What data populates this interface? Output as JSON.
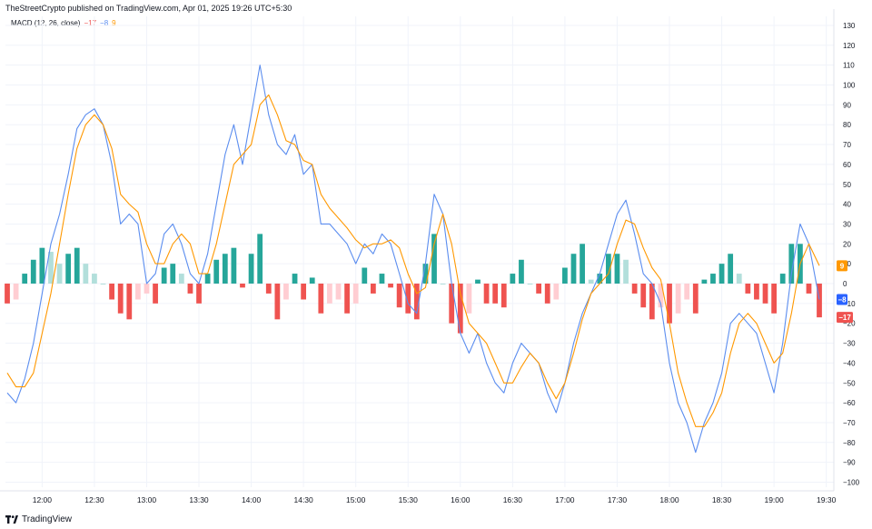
{
  "header": {
    "published_line": "TheStreetCrypto published on TradingView.com, Apr 01, 2025 19:26 UTC+5:30"
  },
  "legend": {
    "name": "MACD (12, 26, close)",
    "histogram_value": "−17",
    "macd_value": "−8",
    "signal_value": "9"
  },
  "footer": {
    "logo_label": "TradingView"
  },
  "colors": {
    "macd_line": "#5b8def",
    "signal_line": "#ff9800",
    "hist_pos_strong": "#26a69a",
    "hist_pos_weak": "#b2dfdb",
    "hist_neg_strong": "#ef5350",
    "hist_neg_weak": "#ffcdd2",
    "grid": "#f0f3fa",
    "badge_signal": "#ff9800",
    "badge_macd": "#2962ff",
    "badge_hist": "#ef5350"
  },
  "chart_data": {
    "type": "line",
    "title": "MACD (12, 26, close)",
    "y_ticks": [
      "130",
      "120",
      "110",
      "100",
      "90",
      "80",
      "70",
      "60",
      "50",
      "40",
      "30",
      "20",
      "10",
      "0",
      "−10",
      "−20",
      "−30",
      "−40",
      "−50",
      "−60",
      "−70",
      "−80",
      "−90",
      "−100"
    ],
    "ylim": [
      -105,
      135
    ],
    "x_ticks": [
      "12:00",
      "12:30",
      "13:00",
      "13:30",
      "14:00",
      "14:30",
      "15:00",
      "15:30",
      "16:00",
      "16:30",
      "17:00",
      "17:30",
      "18:00",
      "18:30",
      "19:00",
      "19:30"
    ],
    "x_range": [
      "11:40",
      "19:26"
    ],
    "grid": true,
    "last_values": {
      "signal": "9",
      "macd": "−8",
      "histogram": "−17"
    },
    "series": [
      {
        "key": "macd",
        "points": [
          [
            "11:40",
            -55
          ],
          [
            "11:45",
            -60
          ],
          [
            "11:50",
            -48
          ],
          [
            "11:55",
            -30
          ],
          [
            "12:00",
            -5
          ],
          [
            "12:05",
            20
          ],
          [
            "12:10",
            35
          ],
          [
            "12:15",
            55
          ],
          [
            "12:20",
            78
          ],
          [
            "12:25",
            85
          ],
          [
            "12:30",
            88
          ],
          [
            "12:35",
            80
          ],
          [
            "12:40",
            60
          ],
          [
            "12:45",
            30
          ],
          [
            "12:50",
            35
          ],
          [
            "12:55",
            30
          ],
          [
            "13:00",
            0
          ],
          [
            "13:05",
            5
          ],
          [
            "13:10",
            25
          ],
          [
            "13:15",
            30
          ],
          [
            "13:20",
            20
          ],
          [
            "13:25",
            5
          ],
          [
            "13:30",
            0
          ],
          [
            "13:35",
            15
          ],
          [
            "13:40",
            40
          ],
          [
            "13:45",
            65
          ],
          [
            "13:50",
            80
          ],
          [
            "13:55",
            60
          ],
          [
            "14:00",
            85
          ],
          [
            "14:05",
            110
          ],
          [
            "14:10",
            85
          ],
          [
            "14:15",
            70
          ],
          [
            "14:20",
            65
          ],
          [
            "14:25",
            75
          ],
          [
            "14:30",
            55
          ],
          [
            "14:35",
            60
          ],
          [
            "14:40",
            30
          ],
          [
            "14:45",
            30
          ],
          [
            "14:50",
            25
          ],
          [
            "14:55",
            20
          ],
          [
            "15:00",
            10
          ],
          [
            "15:05",
            20
          ],
          [
            "15:10",
            15
          ],
          [
            "15:15",
            25
          ],
          [
            "15:20",
            20
          ],
          [
            "15:25",
            5
          ],
          [
            "15:30",
            -10
          ],
          [
            "15:35",
            -15
          ],
          [
            "15:40",
            10
          ],
          [
            "15:45",
            45
          ],
          [
            "15:50",
            35
          ],
          [
            "15:55",
            0
          ],
          [
            "16:00",
            -25
          ],
          [
            "16:05",
            -35
          ],
          [
            "16:10",
            -25
          ],
          [
            "16:15",
            -40
          ],
          [
            "16:20",
            -50
          ],
          [
            "16:25",
            -55
          ],
          [
            "16:30",
            -40
          ],
          [
            "16:35",
            -30
          ],
          [
            "16:40",
            -35
          ],
          [
            "16:45",
            -40
          ],
          [
            "16:50",
            -55
          ],
          [
            "16:55",
            -65
          ],
          [
            "17:00",
            -50
          ],
          [
            "17:05",
            -30
          ],
          [
            "17:10",
            -15
          ],
          [
            "17:15",
            -5
          ],
          [
            "17:20",
            5
          ],
          [
            "17:25",
            20
          ],
          [
            "17:30",
            35
          ],
          [
            "17:35",
            42
          ],
          [
            "17:40",
            25
          ],
          [
            "17:45",
            5
          ],
          [
            "17:50",
            0
          ],
          [
            "17:55",
            -10
          ],
          [
            "18:00",
            -40
          ],
          [
            "18:05",
            -60
          ],
          [
            "18:10",
            -70
          ],
          [
            "18:15",
            -85
          ],
          [
            "18:20",
            -70
          ],
          [
            "18:25",
            -60
          ],
          [
            "18:30",
            -45
          ],
          [
            "18:35",
            -20
          ],
          [
            "18:40",
            -15
          ],
          [
            "18:45",
            -20
          ],
          [
            "18:50",
            -25
          ],
          [
            "18:55",
            -40
          ],
          [
            "19:00",
            -55
          ],
          [
            "19:05",
            -30
          ],
          [
            "19:10",
            5
          ],
          [
            "19:15",
            30
          ],
          [
            "19:20",
            20
          ],
          [
            "19:26",
            -8
          ]
        ]
      },
      {
        "key": "signal",
        "points": [
          [
            "11:40",
            -45
          ],
          [
            "11:45",
            -52
          ],
          [
            "11:50",
            -52
          ],
          [
            "11:55",
            -45
          ],
          [
            "12:00",
            -25
          ],
          [
            "12:05",
            -5
          ],
          [
            "12:10",
            20
          ],
          [
            "12:15",
            45
          ],
          [
            "12:20",
            68
          ],
          [
            "12:25",
            80
          ],
          [
            "12:30",
            85
          ],
          [
            "12:35",
            80
          ],
          [
            "12:40",
            68
          ],
          [
            "12:45",
            45
          ],
          [
            "12:50",
            40
          ],
          [
            "12:55",
            36
          ],
          [
            "13:00",
            20
          ],
          [
            "13:05",
            10
          ],
          [
            "13:10",
            10
          ],
          [
            "13:15",
            20
          ],
          [
            "13:20",
            25
          ],
          [
            "13:25",
            20
          ],
          [
            "13:30",
            5
          ],
          [
            "13:35",
            5
          ],
          [
            "13:40",
            20
          ],
          [
            "13:45",
            40
          ],
          [
            "13:50",
            60
          ],
          [
            "13:55",
            65
          ],
          [
            "14:00",
            70
          ],
          [
            "14:05",
            90
          ],
          [
            "14:10",
            95
          ],
          [
            "14:15",
            85
          ],
          [
            "14:20",
            72
          ],
          [
            "14:25",
            70
          ],
          [
            "14:30",
            62
          ],
          [
            "14:35",
            60
          ],
          [
            "14:40",
            45
          ],
          [
            "14:45",
            38
          ],
          [
            "14:50",
            33
          ],
          [
            "14:55",
            28
          ],
          [
            "15:00",
            22
          ],
          [
            "15:05",
            18
          ],
          [
            "15:10",
            20
          ],
          [
            "15:15",
            20
          ],
          [
            "15:20",
            22
          ],
          [
            "15:25",
            18
          ],
          [
            "15:30",
            5
          ],
          [
            "15:35",
            -5
          ],
          [
            "15:40",
            -2
          ],
          [
            "15:45",
            20
          ],
          [
            "15:50",
            35
          ],
          [
            "15:55",
            20
          ],
          [
            "16:00",
            -5
          ],
          [
            "16:05",
            -20
          ],
          [
            "16:10",
            -25
          ],
          [
            "16:15",
            -30
          ],
          [
            "16:20",
            -40
          ],
          [
            "16:25",
            -50
          ],
          [
            "16:30",
            -50
          ],
          [
            "16:35",
            -42
          ],
          [
            "16:40",
            -35
          ],
          [
            "16:45",
            -40
          ],
          [
            "16:50",
            -50
          ],
          [
            "16:55",
            -58
          ],
          [
            "17:00",
            -50
          ],
          [
            "17:05",
            -35
          ],
          [
            "17:10",
            -18
          ],
          [
            "17:15",
            -5
          ],
          [
            "17:20",
            0
          ],
          [
            "17:25",
            5
          ],
          [
            "17:30",
            20
          ],
          [
            "17:35",
            32
          ],
          [
            "17:40",
            30
          ],
          [
            "17:45",
            18
          ],
          [
            "17:50",
            8
          ],
          [
            "17:55",
            2
          ],
          [
            "18:00",
            -20
          ],
          [
            "18:05",
            -45
          ],
          [
            "18:10",
            -60
          ],
          [
            "18:15",
            -72
          ],
          [
            "18:20",
            -72
          ],
          [
            "18:25",
            -65
          ],
          [
            "18:30",
            -55
          ],
          [
            "18:35",
            -35
          ],
          [
            "18:40",
            -20
          ],
          [
            "18:45",
            -15
          ],
          [
            "18:50",
            -20
          ],
          [
            "18:55",
            -30
          ],
          [
            "19:00",
            -40
          ],
          [
            "19:05",
            -35
          ],
          [
            "19:10",
            -15
          ],
          [
            "19:15",
            10
          ],
          [
            "19:20",
            20
          ],
          [
            "19:26",
            9
          ]
        ]
      },
      {
        "key": "histogram",
        "type": "bar",
        "points": [
          [
            "11:40",
            -10
          ],
          [
            "11:45",
            -8
          ],
          [
            "11:50",
            5
          ],
          [
            "11:55",
            12
          ],
          [
            "12:00",
            18
          ],
          [
            "12:05",
            16
          ],
          [
            "12:10",
            10
          ],
          [
            "12:15",
            15
          ],
          [
            "12:20",
            18
          ],
          [
            "12:25",
            10
          ],
          [
            "12:30",
            5
          ],
          [
            "12:35",
            0
          ],
          [
            "12:40",
            -8
          ],
          [
            "12:45",
            -15
          ],
          [
            "12:50",
            -18
          ],
          [
            "12:55",
            -8
          ],
          [
            "13:00",
            -5
          ],
          [
            "13:05",
            -10
          ],
          [
            "13:10",
            8
          ],
          [
            "13:15",
            10
          ],
          [
            "13:20",
            5
          ],
          [
            "13:25",
            -5
          ],
          [
            "13:30",
            -10
          ],
          [
            "13:35",
            5
          ],
          [
            "13:40",
            12
          ],
          [
            "13:45",
            15
          ],
          [
            "13:50",
            18
          ],
          [
            "13:55",
            -2
          ],
          [
            "14:00",
            15
          ],
          [
            "14:05",
            25
          ],
          [
            "14:10",
            -5
          ],
          [
            "14:15",
            -18
          ],
          [
            "14:20",
            -8
          ],
          [
            "14:25",
            5
          ],
          [
            "14:30",
            -8
          ],
          [
            "14:35",
            3
          ],
          [
            "14:40",
            -15
          ],
          [
            "14:45",
            -10
          ],
          [
            "14:50",
            -8
          ],
          [
            "14:55",
            -15
          ],
          [
            "15:00",
            -10
          ],
          [
            "15:05",
            8
          ],
          [
            "15:10",
            -5
          ],
          [
            "15:15",
            5
          ],
          [
            "15:20",
            -2
          ],
          [
            "15:25",
            -12
          ],
          [
            "15:30",
            -15
          ],
          [
            "15:35",
            -18
          ],
          [
            "15:40",
            10
          ],
          [
            "15:45",
            25
          ],
          [
            "15:50",
            0
          ],
          [
            "15:55",
            -20
          ],
          [
            "16:00",
            -25
          ],
          [
            "16:05",
            -15
          ],
          [
            "16:10",
            2
          ],
          [
            "16:15",
            -10
          ],
          [
            "16:20",
            -10
          ],
          [
            "16:25",
            -12
          ],
          [
            "16:30",
            5
          ],
          [
            "16:35",
            12
          ],
          [
            "16:40",
            0
          ],
          [
            "16:45",
            -5
          ],
          [
            "16:50",
            -10
          ],
          [
            "16:55",
            -8
          ],
          [
            "17:00",
            8
          ],
          [
            "17:05",
            15
          ],
          [
            "17:10",
            20
          ],
          [
            "17:15",
            2
          ],
          [
            "17:20",
            5
          ],
          [
            "17:25",
            15
          ],
          [
            "17:30",
            15
          ],
          [
            "17:35",
            12
          ],
          [
            "17:40",
            -5
          ],
          [
            "17:45",
            -12
          ],
          [
            "17:50",
            -18
          ],
          [
            "17:55",
            -12
          ],
          [
            "18:00",
            -20
          ],
          [
            "18:05",
            -15
          ],
          [
            "18:10",
            -8
          ],
          [
            "18:15",
            -15
          ],
          [
            "18:20",
            2
          ],
          [
            "18:25",
            5
          ],
          [
            "18:30",
            10
          ],
          [
            "18:35",
            15
          ],
          [
            "18:40",
            5
          ],
          [
            "18:45",
            -5
          ],
          [
            "18:50",
            -8
          ],
          [
            "18:55",
            -10
          ],
          [
            "19:00",
            -15
          ],
          [
            "19:05",
            5
          ],
          [
            "19:10",
            20
          ],
          [
            "19:15",
            20
          ],
          [
            "19:20",
            -5
          ],
          [
            "19:26",
            -17
          ]
        ]
      }
    ]
  }
}
